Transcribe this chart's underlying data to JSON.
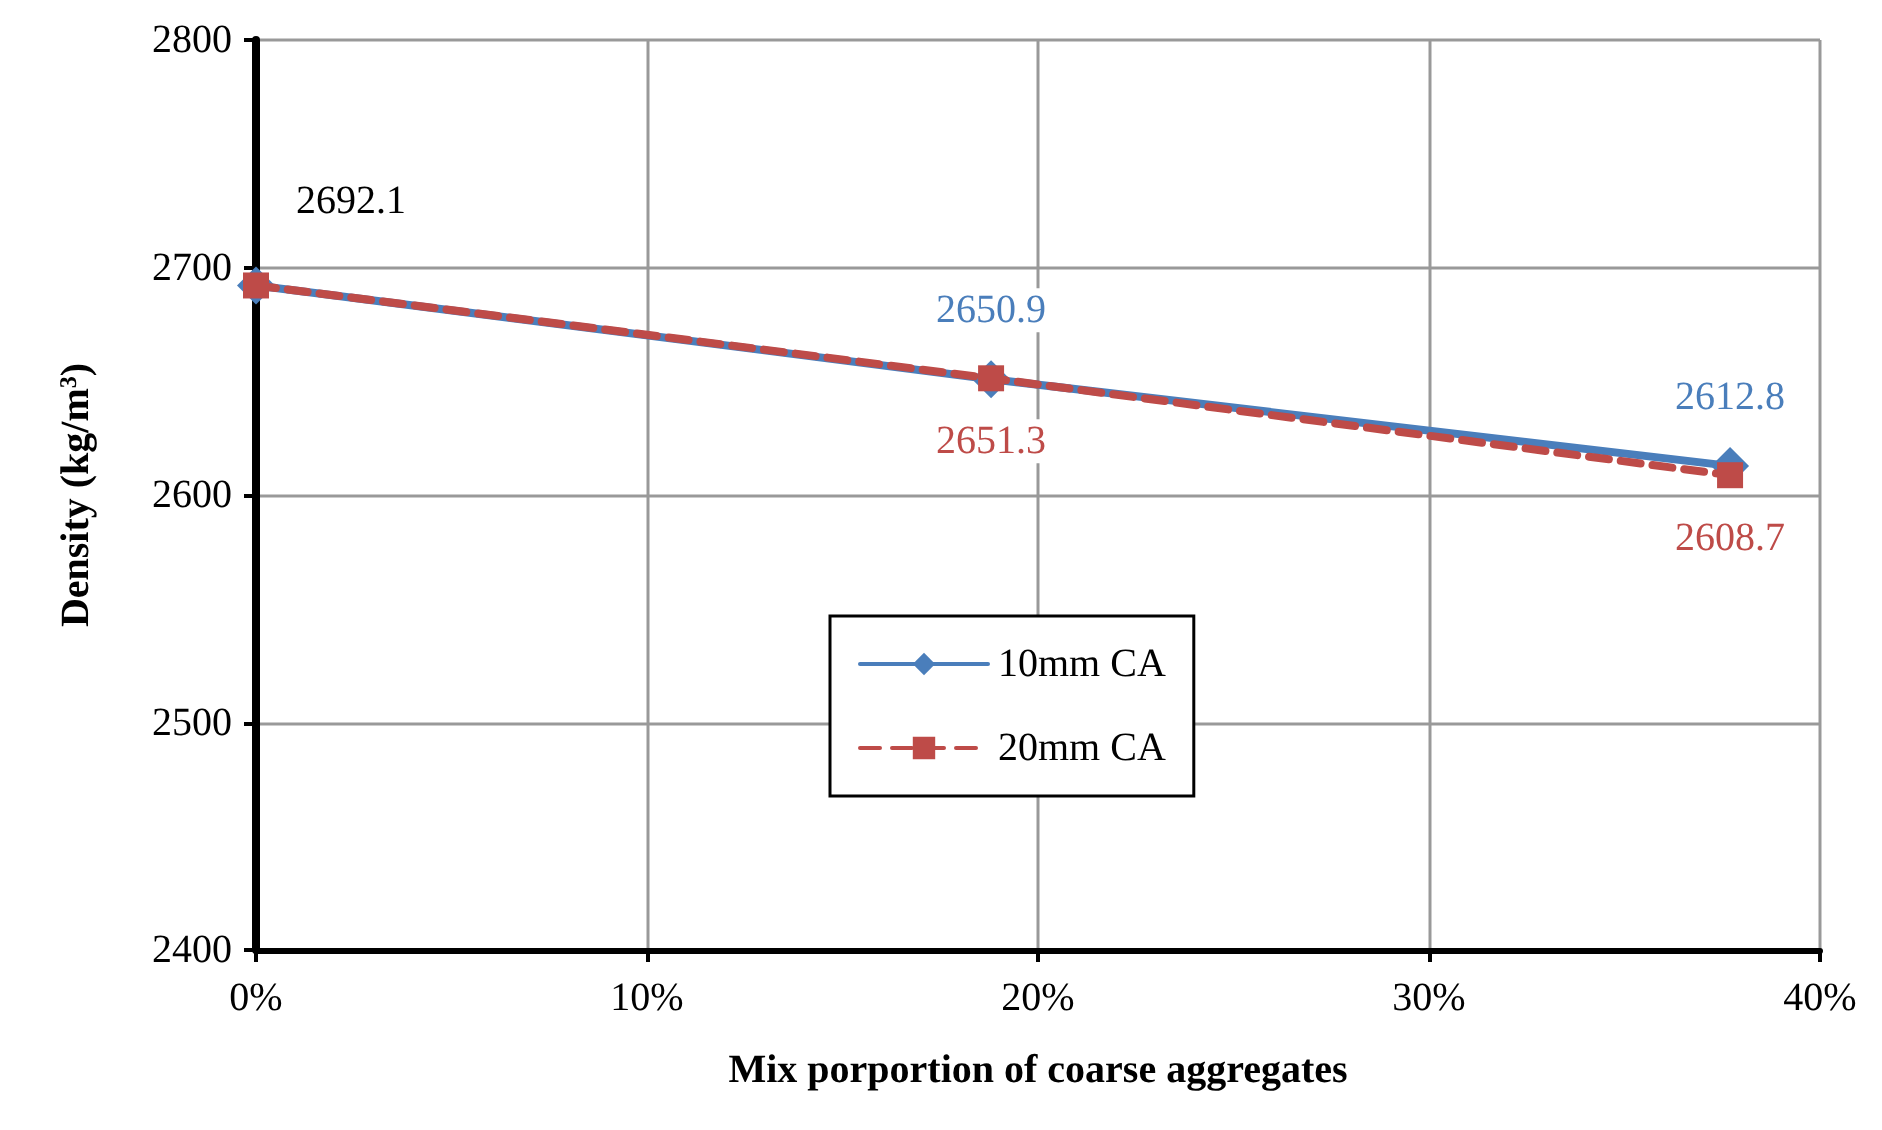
{
  "chart_data": {
    "type": "line",
    "xlabel": "Mix porportion of coarse aggregates",
    "ylabel": "Density (kg/m$^{3}$)",
    "x": [
      0,
      18.8,
      37.7
    ],
    "series": [
      {
        "name": "10mm CA",
        "color": "#4a7ebb",
        "values": [
          2692.1,
          2650.9,
          2612.8
        ],
        "value_labels": [
          null,
          "2650.9",
          "2612.8"
        ],
        "marker": "diamond",
        "line_style": "solid"
      },
      {
        "name": "20mm CA",
        "color": "#be4b48",
        "values": [
          2692.1,
          2651.3,
          2608.7
        ],
        "value_labels": [
          null,
          "2651.3",
          "2608.7"
        ],
        "marker": "square",
        "line_style": "dashed"
      }
    ],
    "annotations": [
      {
        "text": "2692.1",
        "x": 0,
        "y": 2692.1
      }
    ],
    "xlim": [
      0,
      40
    ],
    "xticks": [
      {
        "value": 0,
        "label": "0%"
      },
      {
        "value": 10,
        "label": "10%"
      },
      {
        "value": 20,
        "label": "20%"
      },
      {
        "value": 30,
        "label": "30%"
      },
      {
        "value": 40,
        "label": "40%"
      }
    ],
    "ylim": [
      2400,
      2800
    ],
    "yticks": [
      2400,
      2500,
      2600,
      2700,
      2800
    ],
    "grid": true,
    "legend": "bottom"
  }
}
